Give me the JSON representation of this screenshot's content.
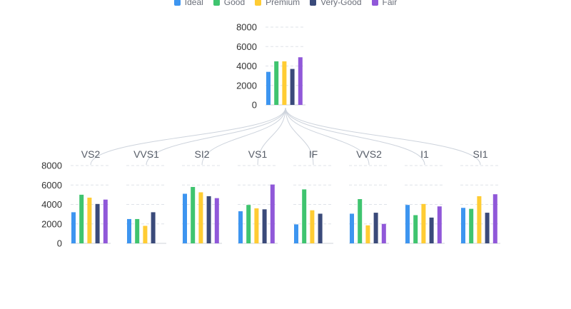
{
  "chart_data": {
    "type": "bar",
    "series_names": [
      "Ideal",
      "Good",
      "Premium",
      "Very-Good",
      "Fair"
    ],
    "colors": [
      "#3d95f0",
      "#3fc46f",
      "#ffcc33",
      "#3a4a7a",
      "#9058d9"
    ],
    "ylim": [
      0,
      8000
    ],
    "yticks": [
      "0",
      "2000",
      "4000",
      "6000",
      "8000"
    ],
    "grid": "horizontal-dashed",
    "legend_position": "top-center",
    "root": {
      "values": [
        3400,
        4480,
        4480,
        3700,
        4900
      ]
    },
    "children": [
      {
        "label": "VS2",
        "values": [
          3200,
          5000,
          4700,
          4050,
          4500
        ]
      },
      {
        "label": "VVS1",
        "values": [
          2500,
          2500,
          1800,
          3200,
          0
        ]
      },
      {
        "label": "SI2",
        "values": [
          5100,
          5800,
          5250,
          4850,
          4650
        ]
      },
      {
        "label": "VS1",
        "values": [
          3300,
          3950,
          3600,
          3500,
          6050
        ]
      },
      {
        "label": "IF",
        "values": [
          1950,
          5550,
          3400,
          3050,
          0
        ]
      },
      {
        "label": "VVS2",
        "values": [
          3050,
          4550,
          1850,
          3150,
          2000
        ]
      },
      {
        "label": "I1",
        "values": [
          3950,
          2900,
          4050,
          2650,
          3800
        ]
      },
      {
        "label": "SI1",
        "values": [
          3650,
          3550,
          4850,
          3150,
          5050
        ]
      }
    ]
  }
}
